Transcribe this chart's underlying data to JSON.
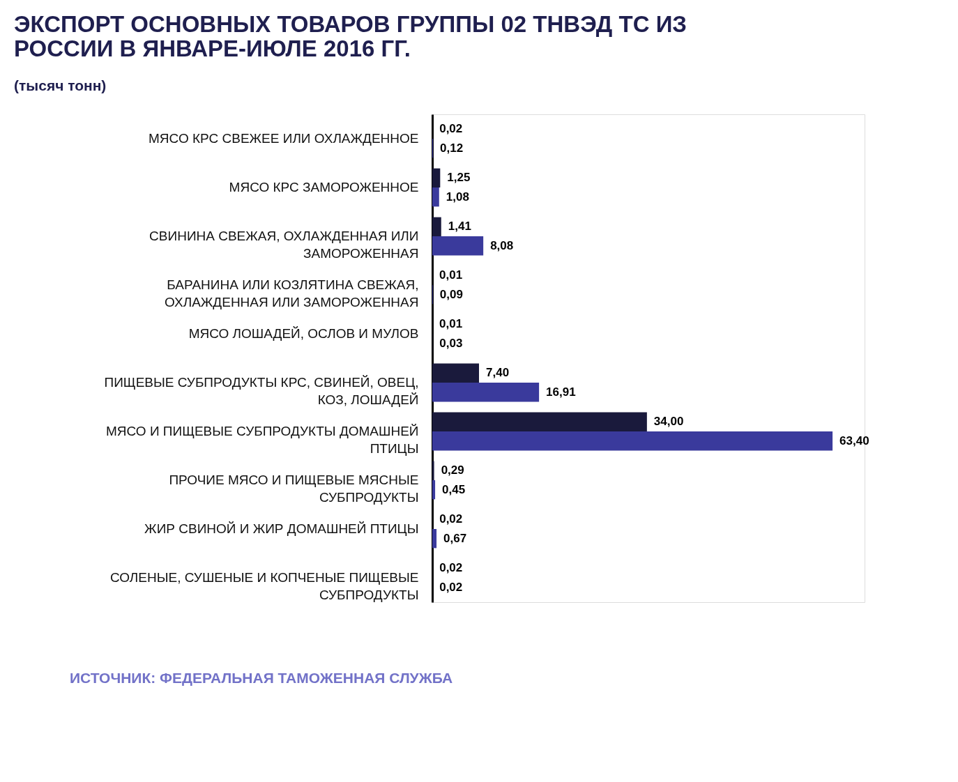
{
  "chart_data": {
    "type": "bar",
    "orientation": "horizontal",
    "title": "ЭКСПОРТ ОСНОВНЫХ ТОВАРОВ ГРУППЫ 02 ТНВЭД ТС ИЗ РОССИИ В ЯНВАРЕ-ИЮЛЕ 2016 ГГ.",
    "subtitle": "(тысяч тонн)",
    "categories": [
      "МЯСО КРС СВЕЖЕЕ ИЛИ ОХЛАЖДЕННОЕ",
      "МЯСО КРС ЗАМОРОЖЕННОЕ",
      "СВИНИНА СВЕЖАЯ, ОХЛАЖДЕННАЯ ИЛИ ЗАМОРОЖЕННАЯ",
      "БАРАНИНА ИЛИ КОЗЛЯТИНА СВЕЖАЯ, ОХЛАЖДЕННАЯ ИЛИ ЗАМОРОЖЕННАЯ",
      "МЯСО ЛОШАДЕЙ, ОСЛОВ И МУЛОВ",
      "ПИЩЕВЫЕ СУБПРОДУКТЫ КРС, СВИНЕЙ, ОВЕЦ, КОЗ, ЛОШАДЕЙ",
      "МЯСО И ПИЩЕВЫЕ СУБПРОДУКТЫ ДОМАШНЕЙ ПТИЦЫ",
      "ПРОЧИЕ МЯСО И ПИЩЕВЫЕ МЯСНЫЕ СУБПРОДУКТЫ",
      "ЖИР СВИНОЙ И ЖИР ДОМАШНЕЙ ПТИЦЫ",
      "СОЛЕНЫЕ, СУШЕНЫЕ И КОПЧЕНЫЕ ПИЩЕВЫЕ СУБПРОДУКТЫ"
    ],
    "series": [
      {
        "color": "#1a1a3c",
        "values": [
          0.02,
          1.25,
          1.41,
          0.01,
          0.01,
          7.4,
          34.0,
          0.29,
          0.02,
          0.02
        ],
        "value_labels": [
          "0,02",
          "1,25",
          "1,41",
          "0,01",
          "0,01",
          "7,40",
          "34,00",
          "0,29",
          "0,02",
          "0,02"
        ]
      },
      {
        "color": "#3a3a9c",
        "values": [
          0.12,
          1.08,
          8.08,
          0.09,
          0.03,
          16.91,
          63.4,
          0.45,
          0.67,
          0.02
        ],
        "value_labels": [
          "0,12",
          "1,08",
          "8,08",
          "0,09",
          "0,03",
          "16,91",
          "63,40",
          "0,45",
          "0,67",
          "0,02"
        ]
      }
    ],
    "tick_labels": "y",
    "legend": false,
    "annotations": [
      "ИСТОЧНИК:  ФЕДЕРАЛЬНАЯ ТАМОЖЕННАЯ  СЛУЖБА"
    ]
  }
}
